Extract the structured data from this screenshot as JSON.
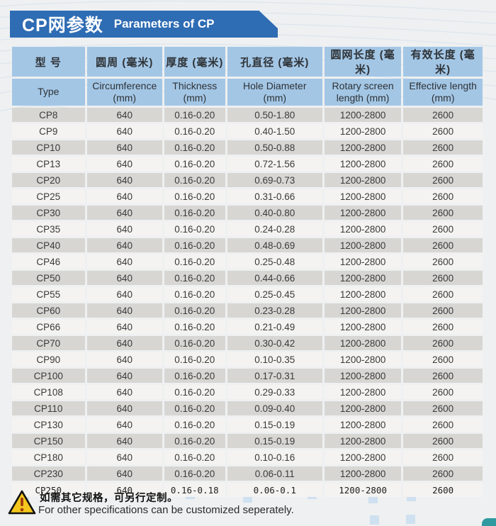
{
  "banner": {
    "title_zh": "CP网参数",
    "title_en": "Parameters of CP"
  },
  "table": {
    "columns": [
      {
        "zh": "型 号",
        "en": "Type",
        "en2": ""
      },
      {
        "zh": "圆周 (毫米)",
        "en": "Circumference",
        "en2": "(mm)"
      },
      {
        "zh": "厚度 (毫米)",
        "en": "Thickness",
        "en2": "(mm)"
      },
      {
        "zh": "孔直径 (毫米)",
        "en": "Hole Diameter",
        "en2": "(mm)"
      },
      {
        "zh": "圆网长度 (毫米)",
        "en": "Rotary screen",
        "en2": "length (mm)"
      },
      {
        "zh": "有效长度 (毫米)",
        "en": "Effective length",
        "en2": "(mm)"
      }
    ],
    "rows": [
      [
        "CP8",
        "640",
        "0.16-0.20",
        "0.50-1.80",
        "1200-2800",
        "2600"
      ],
      [
        "CP9",
        "640",
        "0.16-0.20",
        "0.40-1.50",
        "1200-2800",
        "2600"
      ],
      [
        "CP10",
        "640",
        "0.16-0.20",
        "0.50-0.88",
        "1200-2800",
        "2600"
      ],
      [
        "CP13",
        "640",
        "0.16-0.20",
        "0.72-1.56",
        "1200-2800",
        "2600"
      ],
      [
        "CP20",
        "640",
        "0.16-0.20",
        "0.69-0.73",
        "1200-2800",
        "2600"
      ],
      [
        "CP25",
        "640",
        "0.16-0.20",
        "0.31-0.66",
        "1200-2800",
        "2600"
      ],
      [
        "CP30",
        "640",
        "0.16-0.20",
        "0.40-0.80",
        "1200-2800",
        "2600"
      ],
      [
        "CP35",
        "640",
        "0.16-0.20",
        "0.24-0.28",
        "1200-2800",
        "2600"
      ],
      [
        "CP40",
        "640",
        "0.16-0.20",
        "0.48-0.69",
        "1200-2800",
        "2600"
      ],
      [
        "CP46",
        "640",
        "0.16-0.20",
        "0.25-0.48",
        "1200-2800",
        "2600"
      ],
      [
        "CP50",
        "640",
        "0.16-0.20",
        "0.44-0.66",
        "1200-2800",
        "2600"
      ],
      [
        "CP55",
        "640",
        "0.16-0.20",
        "0.25-0.45",
        "1200-2800",
        "2600"
      ],
      [
        "CP60",
        "640",
        "0.16-0.20",
        "0.23-0.28",
        "1200-2800",
        "2600"
      ],
      [
        "CP66",
        "640",
        "0.16-0.20",
        "0.21-0.49",
        "1200-2800",
        "2600"
      ],
      [
        "CP70",
        "640",
        "0.16-0.20",
        "0.30-0.42",
        "1200-2800",
        "2600"
      ],
      [
        "CP90",
        "640",
        "0.16-0.20",
        "0.10-0.35",
        "1200-2800",
        "2600"
      ],
      [
        "CP100",
        "640",
        "0.16-0.20",
        "0.17-0.31",
        "1200-2800",
        "2600"
      ],
      [
        "CP108",
        "640",
        "0.16-0.20",
        "0.29-0.33",
        "1200-2800",
        "2600"
      ],
      [
        "CP110",
        "640",
        "0.16-0.20",
        "0.09-0.40",
        "1200-2800",
        "2600"
      ],
      [
        "CP130",
        "640",
        "0.16-0.20",
        "0.15-0.19",
        "1200-2800",
        "2600"
      ],
      [
        "CP150",
        "640",
        "0.16-0.20",
        "0.15-0.19",
        "1200-2800",
        "2600"
      ],
      [
        "CP180",
        "640",
        "0.16-0.20",
        "0.10-0.16",
        "1200-2800",
        "2600"
      ],
      [
        "CP230",
        "640",
        "0.16-0.20",
        "0.06-0.11",
        "1200-2800",
        "2600"
      ],
      [
        "CP250",
        "640",
        "0.16-0.18",
        "0.06-0.1",
        "1200-2800",
        "2600"
      ]
    ]
  },
  "footer": {
    "icon": "warning-triangle-icon",
    "note_zh": "如需其它规格，可另行定制。",
    "note_en": "For other specifications  can be customized seperately."
  },
  "colors": {
    "banner_blue": "#2e6cb3",
    "header_blue": "#a3c6e5",
    "row_gray": "#d7d6d3",
    "row_light": "#f4f3f1",
    "page_bg": "#eef0f1",
    "line_blue": "#c9d9ea",
    "square_blue": "#cfe0f0",
    "warning_yellow": "#f6c71c",
    "teal_accent": "#2f9aa0"
  }
}
